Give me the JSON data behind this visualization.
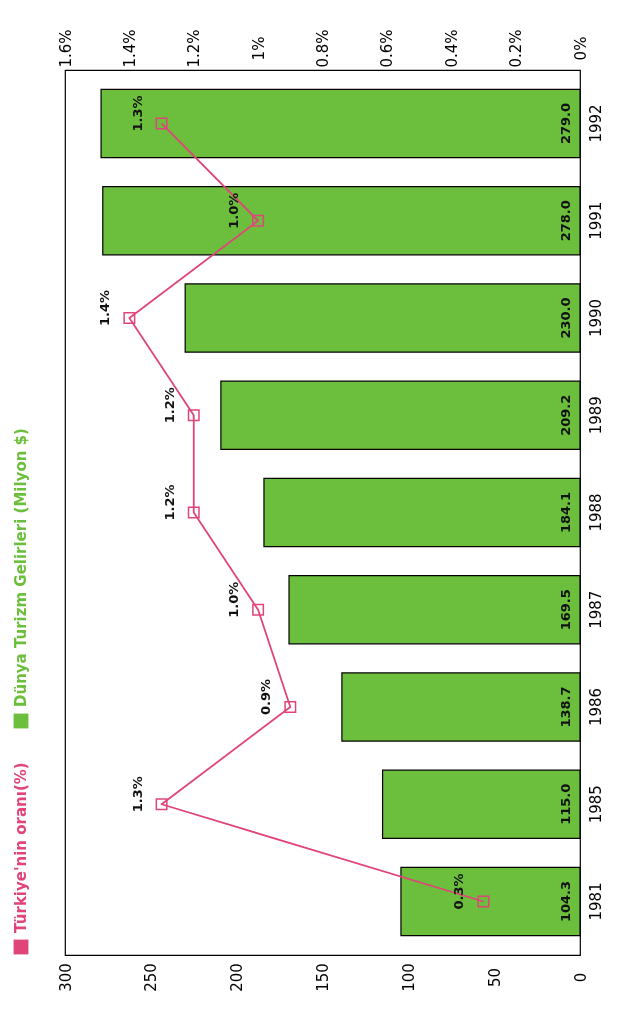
{
  "chart_data": {
    "type": "bar",
    "orientation": "horizontal",
    "categories": [
      "1992",
      "1991",
      "1990",
      "1989",
      "1988",
      "1987",
      "1986",
      "1985",
      "1981"
    ],
    "series": [
      {
        "name": "Türkiye'nin oranı(%)",
        "type": "line",
        "axis": "x2",
        "color": "#e0457a",
        "values": [
          1.3,
          1.0,
          1.4,
          1.2,
          1.2,
          1.0,
          0.9,
          1.3,
          0.3
        ],
        "value_labels": [
          "1.3%",
          "1.0%",
          "1.4%",
          "1.2%",
          "1.2%",
          "1.0%",
          "0.9%",
          "1.3%",
          "0.3%"
        ]
      },
      {
        "name": "Dünya Turizm Gelirleri (Milyon $)",
        "color": "#6cbf3c",
        "values": [
          279.0,
          278.0,
          230.0,
          209.2,
          184.1,
          169.5,
          138.7,
          115.0,
          104.3
        ],
        "value_labels": [
          "279.0",
          "278.0",
          "230.0",
          "209.2",
          "184.1",
          "169.5",
          "138.7",
          "115.0",
          "104.3"
        ]
      }
    ],
    "xlim": [
      300,
      0
    ],
    "xticks": [
      300,
      250,
      200,
      150,
      100,
      50,
      0
    ],
    "x2lim": [
      1.6,
      0
    ],
    "x2ticks": [
      {
        "value": 1.6,
        "label": "1.6%"
      },
      {
        "value": 1.4,
        "label": "1.4%"
      },
      {
        "value": 1.2,
        "label": "1.2%"
      },
      {
        "value": 1,
        "label": "1%"
      },
      {
        "value": 0.8,
        "label": "0.8%"
      },
      {
        "value": 0.6,
        "label": "0.6%"
      },
      {
        "value": 0.4,
        "label": "0.4%"
      },
      {
        "value": 0.2,
        "label": "0.2%"
      },
      {
        "value": 0,
        "label": "0%"
      }
    ],
    "marker": "square",
    "legend": "left",
    "grid": false
  }
}
